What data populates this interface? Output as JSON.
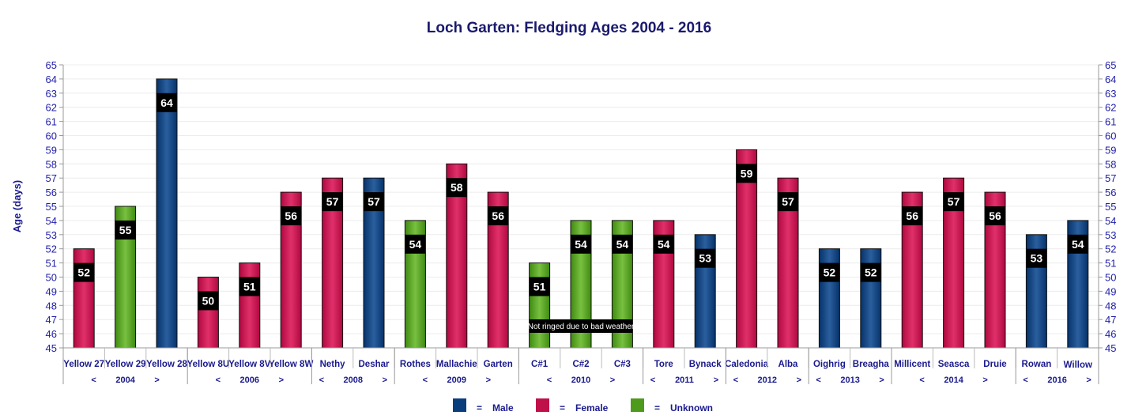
{
  "chart_data": {
    "type": "bar",
    "title": "Loch Garten: Fledging Ages 2004 - 2016",
    "ylabel": "Age (days)",
    "xlabel": "",
    "ylim": [
      45,
      65
    ],
    "yticks": [
      45,
      46,
      47,
      48,
      49,
      50,
      51,
      52,
      53,
      54,
      55,
      56,
      57,
      58,
      59,
      60,
      61,
      62,
      63,
      64,
      65
    ],
    "grid": true,
    "categories": [
      "Yellow 27",
      "Yellow 29",
      "Yellow 28",
      "Yellow 8U",
      "Yellow 8V",
      "Yellow 8W",
      "Nethy",
      "Deshar",
      "Rothes",
      "Mallachie",
      "Garten",
      "C#1",
      "C#2",
      "C#3",
      "Tore",
      "Bynack",
      "Caledonia",
      "Alba",
      "Oighrig",
      "Breagha",
      "Millicent",
      "Seasca",
      "Druie",
      "Rowan",
      "Willow"
    ],
    "values": [
      52,
      55,
      64,
      50,
      51,
      56,
      57,
      57,
      54,
      58,
      56,
      51,
      54,
      54,
      54,
      53,
      59,
      57,
      52,
      52,
      56,
      57,
      56,
      53,
      54
    ],
    "sex": [
      "Female",
      "Unknown",
      "Male",
      "Female",
      "Female",
      "Female",
      "Female",
      "Male",
      "Unknown",
      "Female",
      "Female",
      "Unknown",
      "Unknown",
      "Unknown",
      "Female",
      "Male",
      "Female",
      "Female",
      "Male",
      "Male",
      "Female",
      "Female",
      "Female",
      "Male",
      "Male"
    ],
    "groups": [
      {
        "year": "2004",
        "start": 0,
        "count": 3
      },
      {
        "year": "2006",
        "start": 3,
        "count": 3
      },
      {
        "year": "2008",
        "start": 6,
        "count": 2
      },
      {
        "year": "2009",
        "start": 8,
        "count": 3
      },
      {
        "year": "2010",
        "start": 11,
        "count": 3
      },
      {
        "year": "2011",
        "start": 14,
        "count": 2
      },
      {
        "year": "2012",
        "start": 16,
        "count": 2
      },
      {
        "year": "2013",
        "start": 18,
        "count": 2
      },
      {
        "year": "2014",
        "start": 20,
        "count": 3
      },
      {
        "year": "2016",
        "start": 23,
        "count": 2
      }
    ],
    "group_prev_label": "<",
    "group_next_label": ">",
    "annotation": "Not ringed due to bad weather",
    "legend": [
      {
        "name": "Male",
        "color": "#0a3d7c"
      },
      {
        "name": "Female",
        "color": "#c0104a"
      },
      {
        "name": "Unknown",
        "color": "#4e9a1c"
      }
    ],
    "legend_separator": "=",
    "legend_position": "bottom"
  }
}
